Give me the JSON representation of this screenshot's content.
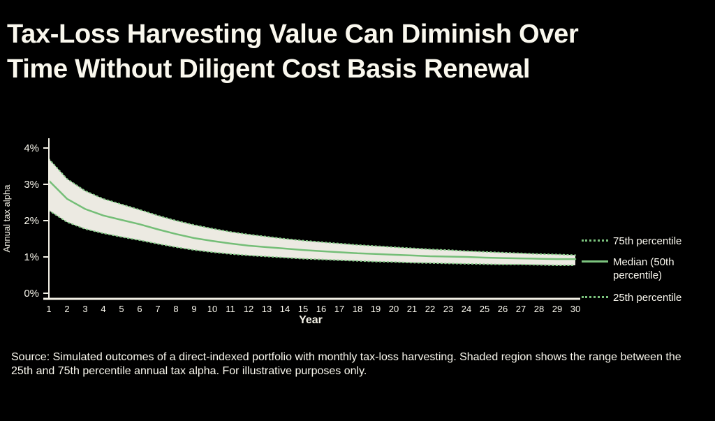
{
  "title": {
    "line1": "Tax-Loss Harvesting Value Can Diminish Over",
    "line2": "Time Without Diligent Cost Basis Renewal"
  },
  "caption": "Source: Simulated outcomes of a direct-indexed portfolio with monthly tax-loss harvesting. Shaded region shows the range between the 25th and 75th percentile annual tax alpha. For illustrative purposes only.",
  "colors": {
    "background": "#000000",
    "text_cream": "#FAF8EE",
    "axis": "#F3F1E6",
    "line_solid_green": "#74BE77",
    "line_dotted_green": "#86CA88",
    "band_fill": "#F6F4EB"
  },
  "legend": {
    "items": [
      {
        "label": "75th percentile",
        "style": "dotted"
      },
      {
        "label": "Median (50th percentile)",
        "style": "solid"
      },
      {
        "label": "25th percentile",
        "style": "dotted"
      }
    ]
  },
  "chart_data": {
    "type": "line",
    "title": "Tax-Loss Harvesting Value Can Diminish Over Time Without Diligent Cost Basis Renewal",
    "xlabel": "Year",
    "ylabel": "Annual tax alpha",
    "legend_position": "right",
    "grid": false,
    "ylim": [
      0,
      4.3
    ],
    "x": [
      1,
      2,
      3,
      4,
      5,
      6,
      7,
      8,
      9,
      10,
      11,
      12,
      13,
      14,
      15,
      16,
      17,
      18,
      19,
      20,
      21,
      22,
      23,
      24,
      25,
      26,
      27,
      28,
      29,
      30
    ],
    "yticks": [
      {
        "label": "4%",
        "value": 4
      },
      {
        "label": "3%",
        "value": 3
      },
      {
        "label": "2%",
        "value": 2
      },
      {
        "label": "1%",
        "value": 1
      },
      {
        "label": "0%",
        "value": 0
      }
    ],
    "series": [
      {
        "name": "75th percentile",
        "style": "dotted",
        "values": [
          3.7,
          3.15,
          2.82,
          2.6,
          2.45,
          2.3,
          2.14,
          2.0,
          1.88,
          1.78,
          1.69,
          1.62,
          1.56,
          1.5,
          1.45,
          1.41,
          1.37,
          1.33,
          1.3,
          1.27,
          1.24,
          1.21,
          1.19,
          1.16,
          1.14,
          1.12,
          1.1,
          1.08,
          1.07,
          1.05
        ]
      },
      {
        "name": "Median (50th percentile)",
        "style": "solid",
        "values": [
          3.1,
          2.6,
          2.32,
          2.14,
          2.02,
          1.9,
          1.76,
          1.63,
          1.52,
          1.44,
          1.37,
          1.31,
          1.27,
          1.23,
          1.19,
          1.16,
          1.13,
          1.1,
          1.08,
          1.06,
          1.04,
          1.02,
          1.01,
          1.0,
          0.98,
          0.97,
          0.96,
          0.95,
          0.94,
          0.94
        ]
      },
      {
        "name": "25th percentile",
        "style": "dotted",
        "values": [
          2.28,
          1.96,
          1.77,
          1.65,
          1.55,
          1.46,
          1.36,
          1.27,
          1.19,
          1.13,
          1.08,
          1.04,
          1.01,
          0.98,
          0.95,
          0.93,
          0.91,
          0.89,
          0.87,
          0.86,
          0.84,
          0.83,
          0.82,
          0.81,
          0.8,
          0.79,
          0.79,
          0.78,
          0.77,
          0.77
        ]
      }
    ],
    "band_between": [
      "75th percentile",
      "25th percentile"
    ]
  }
}
